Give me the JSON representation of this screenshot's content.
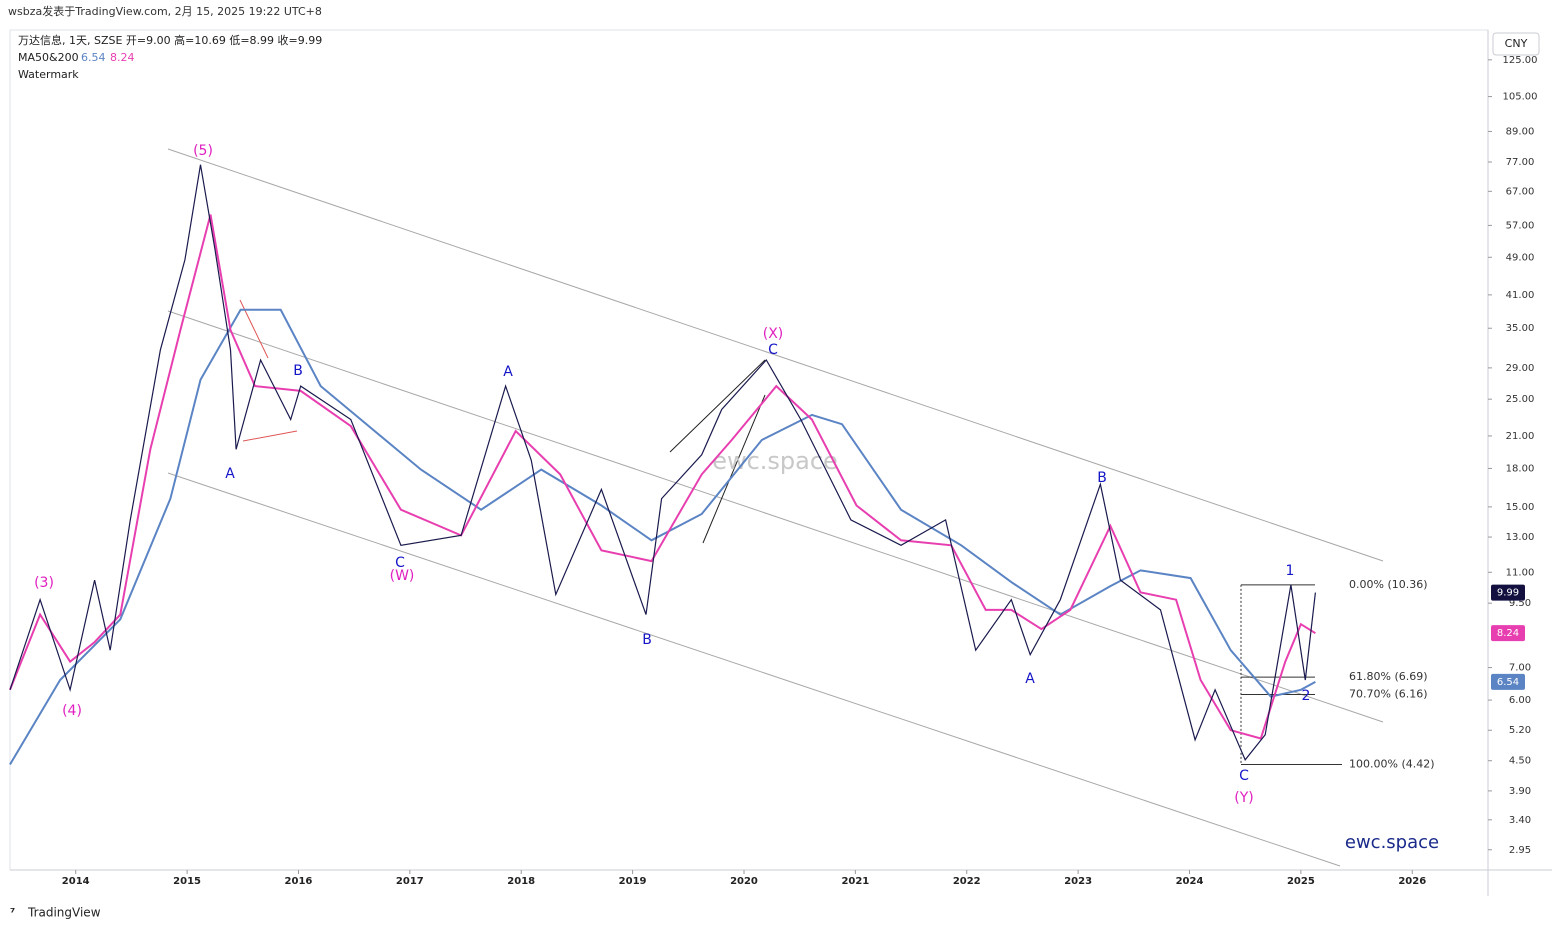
{
  "header": {
    "source": "wsbza发表于TradingView.com, 2月 15, 2025 19:22 UTC+8",
    "symbol_line": "万达信息, 1天, SZSE  开=9.00  高=10.69  低=8.99  收=9.99",
    "indicator_label": "MA50&200",
    "watermark_label": "Watermark",
    "currency": "CNY",
    "footer": "TradingView"
  },
  "chart_data": {
    "type": "line",
    "log_scale": true,
    "xlim": [
      2013.41,
      2026.68
    ],
    "xticks": [
      2014,
      2015,
      2016,
      2017,
      2018,
      2019,
      2020,
      2021,
      2022,
      2023,
      2024,
      2025,
      2026
    ],
    "ylim": [
      2.68,
      144
    ],
    "yticks": [
      {
        "value": 125,
        "label": "125.00"
      },
      {
        "value": 105,
        "label": "105.00"
      },
      {
        "value": 89,
        "label": "89.00"
      },
      {
        "value": 77,
        "label": "77.00"
      },
      {
        "value": 67,
        "label": "67.00"
      },
      {
        "value": 57,
        "label": "57.00"
      },
      {
        "value": 49,
        "label": "49.00"
      },
      {
        "value": 41,
        "label": "41.00"
      },
      {
        "value": 35,
        "label": "35.00"
      },
      {
        "value": 29,
        "label": "29.00"
      },
      {
        "value": 25,
        "label": "25.00"
      },
      {
        "value": 21,
        "label": "21.00"
      },
      {
        "value": 18,
        "label": "18.00"
      },
      {
        "value": 15,
        "label": "15.00"
      },
      {
        "value": 13,
        "label": "13.00"
      },
      {
        "value": 11,
        "label": "11.00"
      },
      {
        "value": 9.5,
        "label": "9.50"
      },
      {
        "value": 7,
        "label": "7.00"
      },
      {
        "value": 6,
        "label": "6.00"
      },
      {
        "value": 5.2,
        "label": "5.20"
      },
      {
        "value": 4.5,
        "label": "4.50"
      },
      {
        "value": 3.9,
        "label": "3.90"
      },
      {
        "value": 3.4,
        "label": "3.40"
      },
      {
        "value": 2.95,
        "label": "2.95"
      }
    ],
    "series": [
      {
        "color": "#1a1a4e",
        "x": [
          2013.41,
          2013.68,
          2013.95,
          2014.17,
          2014.31,
          2014.49,
          2014.76,
          2014.98,
          2015.12,
          2015.25,
          2015.39,
          2015.44,
          2015.66,
          2015.93,
          2016.02,
          2016.47,
          2016.92,
          2017.46,
          2017.86,
          2018.09,
          2018.31,
          2018.72,
          2019.12,
          2019.26,
          2019.62,
          2019.8,
          2020.2,
          2020.51,
          2020.96,
          2021.41,
          2021.81,
          2022.08,
          2022.4,
          2022.57,
          2022.84,
          2023.2,
          2023.38,
          2023.74,
          2024.05,
          2024.23,
          2024.5,
          2024.68,
          2024.91,
          2025.04,
          2025.13
        ],
        "values": [
          6.3,
          9.66,
          6.3,
          10.6,
          7.6,
          14.1,
          31.6,
          48.4,
          76,
          51,
          31.6,
          19.7,
          30.1,
          22.7,
          26.6,
          22.7,
          12.5,
          13.1,
          26.6,
          18.7,
          9.9,
          16.3,
          9.0,
          15.6,
          19.2,
          23.8,
          30.1,
          22.7,
          14.1,
          12.5,
          14.1,
          7.6,
          9.66,
          7.44,
          9.66,
          16.7,
          10.6,
          9.2,
          4.97,
          6.3,
          4.52,
          5.09,
          10.36,
          6.6,
          9.99
        ]
      },
      {
        "color": "#5b84c4",
        "x": [
          2013.41,
          2013.86,
          2014.4,
          2014.85,
          2015.12,
          2015.48,
          2015.84,
          2016.2,
          2016.56,
          2017.1,
          2017.64,
          2018.18,
          2018.72,
          2019.17,
          2019.62,
          2020.16,
          2020.61,
          2020.88,
          2021.41,
          2021.95,
          2022.4,
          2022.84,
          2023.29,
          2023.56,
          2024.01,
          2024.37,
          2024.73,
          2025.0,
          2025.13
        ],
        "values": [
          4.42,
          6.6,
          8.8,
          15.6,
          27.4,
          38.2,
          38.2,
          26.6,
          22.7,
          17.9,
          14.8,
          17.9,
          15.1,
          12.8,
          14.5,
          20.6,
          23.2,
          22.2,
          14.8,
          12.5,
          10.5,
          9.0,
          10.3,
          11.1,
          10.7,
          7.6,
          6.1,
          6.3,
          6.54
        ]
      },
      {
        "color": "#e83fb0",
        "x": [
          2013.41,
          2013.68,
          2013.95,
          2014.17,
          2014.4,
          2014.67,
          2014.94,
          2015.21,
          2015.39,
          2015.61,
          2016.02,
          2016.47,
          2016.92,
          2017.46,
          2017.95,
          2018.35,
          2018.72,
          2019.17,
          2019.62,
          2019.89,
          2020.29,
          2020.61,
          2021.01,
          2021.41,
          2021.86,
          2022.17,
          2022.4,
          2022.67,
          2022.93,
          2023.29,
          2023.56,
          2023.88,
          2024.1,
          2024.37,
          2024.64,
          2024.86,
          2025.0,
          2025.13
        ],
        "values": [
          6.3,
          9.0,
          7.2,
          7.9,
          9.0,
          19.7,
          34.7,
          60,
          34.7,
          26.6,
          26.0,
          22.0,
          14.8,
          13.1,
          21.5,
          17.5,
          12.2,
          11.6,
          17.5,
          20.6,
          26.6,
          22.7,
          15.1,
          12.8,
          12.5,
          9.2,
          9.2,
          8.4,
          9.2,
          13.7,
          10.0,
          9.66,
          6.6,
          5.2,
          5.0,
          7.2,
          8.6,
          8.24
        ]
      }
    ],
    "fib_levels": [
      {
        "label": "0.00% (10.36)",
        "price": 10.36
      },
      {
        "label": "61.80% (6.69)",
        "price": 6.69
      },
      {
        "label": "70.70% (6.16)",
        "price": 6.16
      },
      {
        "label": "100.00% (4.42)",
        "price": 4.42
      }
    ],
    "wave_labels": [
      "(5)",
      "(3)",
      "(4)",
      "A",
      "B",
      "C",
      "(W)",
      "A",
      "B",
      "(X)",
      "C",
      "B",
      "A",
      "C",
      "(Y)",
      "1",
      "2"
    ],
    "watermark_center": "ewc.space",
    "watermark_corner": "ewc.space"
  }
}
